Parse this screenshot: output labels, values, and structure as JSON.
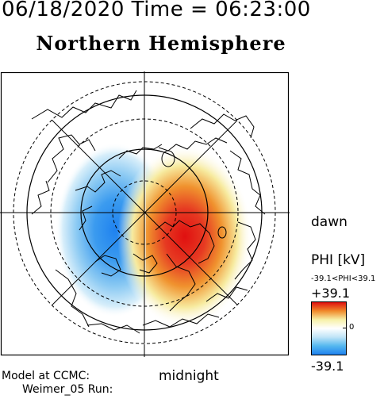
{
  "header": {
    "timestamp": "06/18/2020 Time = 06:23:00",
    "hemisphere": "Northern Hemisphere"
  },
  "map": {
    "local_time_labels": {
      "right": "dawn",
      "bottom": "midnight"
    },
    "cells": {
      "negative_color": "#1e82f0",
      "positive_color": "#e01b1b"
    }
  },
  "colorbar": {
    "title": "PHI [kV]",
    "range_text": "-39.1<PHI<39.1",
    "max_label": "+39.1",
    "min_label": "-39.1",
    "zero_label": "0",
    "colors": [
      "#e01010",
      "#f08a2a",
      "#f7f0a8",
      "#ffffff",
      "#bfe4f7",
      "#55b8ef",
      "#1f82ef"
    ]
  },
  "footer": {
    "model_label": "Model at CCMC:",
    "run_label": "Weimer_05 Run:"
  }
}
